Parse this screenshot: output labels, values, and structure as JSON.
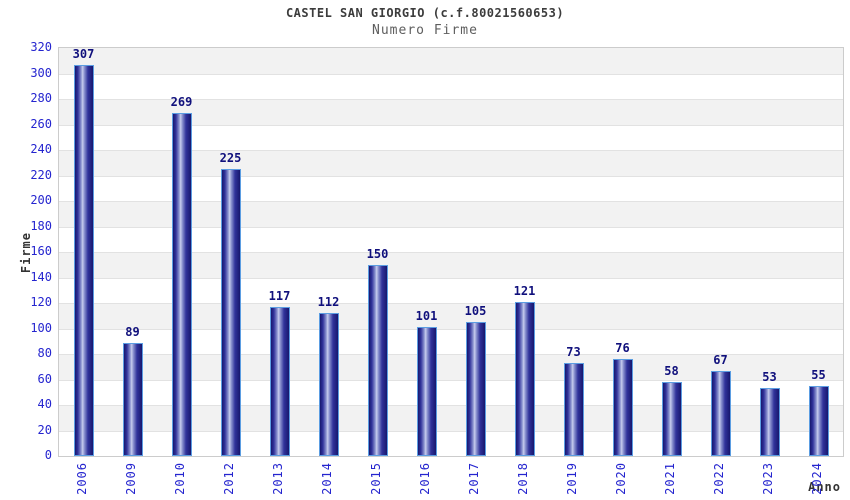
{
  "chart_data": {
    "type": "bar",
    "title": "CASTEL SAN GIORGIO (c.f.80021560653)",
    "subtitle": "Numero Firme",
    "xlabel": "Anno",
    "ylabel": "Firme",
    "categories": [
      "2006",
      "2009",
      "2010",
      "2012",
      "2013",
      "2014",
      "2015",
      "2016",
      "2017",
      "2018",
      "2019",
      "2020",
      "2021",
      "2022",
      "2023",
      "2024"
    ],
    "values": [
      307,
      89,
      269,
      225,
      117,
      112,
      150,
      101,
      105,
      121,
      73,
      76,
      58,
      67,
      53,
      55
    ],
    "ylim": [
      0,
      320
    ],
    "ytick_step": 20,
    "legend": null,
    "grid": "horizontal",
    "layout": {
      "bands_alternating": true,
      "x_tick_rotation_deg": 90,
      "value_labels_shown": true
    },
    "colors": {
      "bar_dark": "#17176e",
      "bar_light": "#c8cdee",
      "bar_border": "#5b9de2",
      "tick_text": "#2525cf",
      "value_label": "#10107c",
      "title_text": "#3c3c3c",
      "subtitle_text": "#5e5e5e",
      "axis_title_text": "#333333",
      "band_gray": "#f2f2f2",
      "gridline": "#e2e2e2",
      "plot_border": "#cccccc"
    }
  }
}
